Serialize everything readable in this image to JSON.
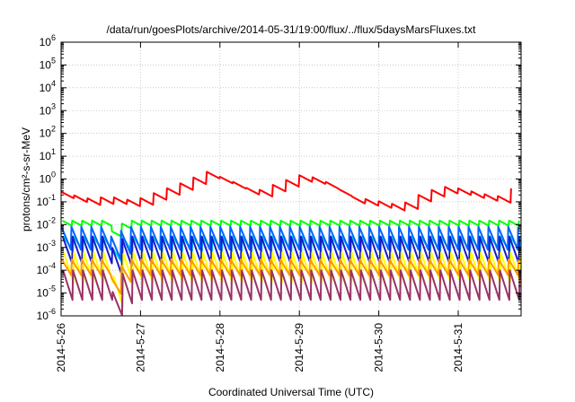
{
  "chart_data": {
    "type": "line",
    "title": "/data/run/goesPlots/archive/2014-05-31/19:00/flux/../flux/5daysMarsFluxes.txt",
    "xlabel": "Coordinated Universal Time (UTC)",
    "ylabel": "protons/cm²-s-sr-MeV",
    "y_scale": "log",
    "ylim": [
      1e-06,
      1000000.0
    ],
    "y_ticks": [
      {
        "value": 1e-06,
        "base": "10",
        "exp": "-6"
      },
      {
        "value": 1e-05,
        "base": "10",
        "exp": "-5"
      },
      {
        "value": 0.0001,
        "base": "10",
        "exp": "-4"
      },
      {
        "value": 0.001,
        "base": "10",
        "exp": "-3"
      },
      {
        "value": 0.01,
        "base": "10",
        "exp": "-2"
      },
      {
        "value": 0.1,
        "base": "10",
        "exp": "-1"
      },
      {
        "value": 1.0,
        "base": "10",
        "exp": "0"
      },
      {
        "value": 10.0,
        "base": "10",
        "exp": "1"
      },
      {
        "value": 100.0,
        "base": "10",
        "exp": "2"
      },
      {
        "value": 1000.0,
        "base": "10",
        "exp": "3"
      },
      {
        "value": 10000.0,
        "base": "10",
        "exp": "4"
      },
      {
        "value": 100000.0,
        "base": "10",
        "exp": "5"
      },
      {
        "value": 1000000.0,
        "base": "10",
        "exp": "6"
      }
    ],
    "xlim": [
      "2014-05-26T00:00",
      "2014-05-31T19:00"
    ],
    "x_ticks": [
      "2014-5-26",
      "2014-5-27",
      "2014-5-28",
      "2014-5-29",
      "2014-5-30",
      "2014-5-31"
    ],
    "grid": true,
    "series": [
      {
        "color": "#ff0000",
        "cycle_h": 4,
        "approx_values": [
          0.2,
          0.1,
          0.12,
          0.08,
          0.2,
          0.5,
          1.5,
          0.6,
          0.2,
          0.5,
          1.2,
          0.5,
          0.12,
          0.08,
          0.05,
          0.2,
          0.35,
          0.2,
          0.12,
          0.5
        ]
      },
      {
        "color": "#00ff00",
        "cycle_h": 3,
        "approx_values": [
          0.015,
          0.009
        ]
      },
      {
        "color": "#00dddd",
        "cycle_h": 3,
        "approx_values": [
          0.003,
          0.0007
        ]
      },
      {
        "color": "#0066ff",
        "cycle_h": 3,
        "approx_values": [
          0.008,
          0.0008
        ]
      },
      {
        "color": "#1a1acc",
        "cycle_h": 3,
        "approx_values": [
          0.003,
          0.0002
        ]
      },
      {
        "color": "#ffff00",
        "cycle_h": 3,
        "approx_values": [
          0.0006,
          3e-05
        ]
      },
      {
        "color": "#ff9900",
        "cycle_h": 3,
        "approx_values": [
          0.0003,
          6e-05
        ]
      },
      {
        "color": "#993366",
        "cycle_h": 3,
        "approx_values": [
          0.0001,
          5e-06
        ]
      }
    ]
  }
}
